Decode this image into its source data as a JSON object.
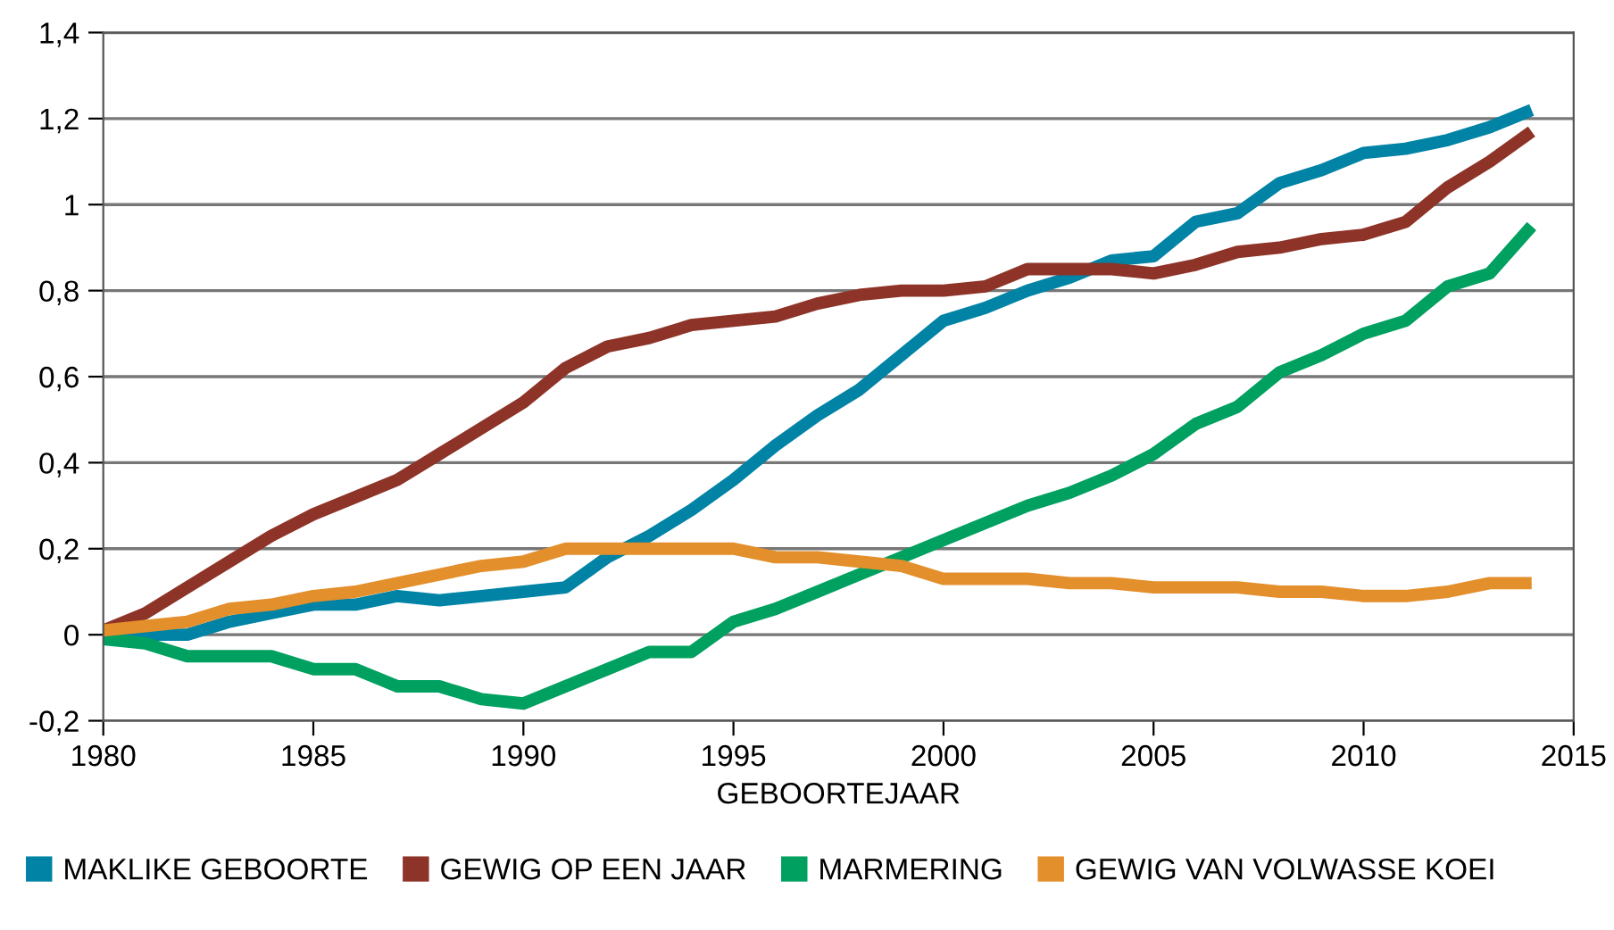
{
  "chart_data": {
    "type": "line",
    "xlabel": "GEBOORTEJAAR",
    "x": [
      1980,
      1981,
      1982,
      1983,
      1984,
      1985,
      1986,
      1987,
      1988,
      1989,
      1990,
      1991,
      1992,
      1993,
      1994,
      1995,
      1996,
      1997,
      1998,
      1999,
      2000,
      2001,
      2002,
      2003,
      2004,
      2005,
      2006,
      2007,
      2008,
      2009,
      2010,
      2011,
      2012,
      2013,
      2014
    ],
    "series": [
      {
        "name": "MAKLIKE GEBOORTE",
        "color": "#0083a5",
        "values": [
          0.01,
          0,
          0,
          0.03,
          0.05,
          0.07,
          0.07,
          0.09,
          0.08,
          0.09,
          0.1,
          0.11,
          0.18,
          0.23,
          0.29,
          0.36,
          0.44,
          0.51,
          0.57,
          0.65,
          0.73,
          0.76,
          0.8,
          0.83,
          0.87,
          0.88,
          0.96,
          0.98,
          1.05,
          1.08,
          1.12,
          1.13,
          1.15,
          1.18,
          1.22
        ]
      },
      {
        "name": "GEWIG OP EEN JAAR",
        "color": "#8e3328",
        "values": [
          0.01,
          0.05,
          0.11,
          0.17,
          0.23,
          0.28,
          0.32,
          0.36,
          0.42,
          0.48,
          0.54,
          0.62,
          0.67,
          0.69,
          0.72,
          0.73,
          0.74,
          0.77,
          0.79,
          0.8,
          0.8,
          0.81,
          0.85,
          0.85,
          0.85,
          0.84,
          0.86,
          0.89,
          0.9,
          0.92,
          0.93,
          0.96,
          1.04,
          1.1,
          1.17
        ]
      },
      {
        "name": "MARMERING",
        "color": "#00a060",
        "values": [
          -0.01,
          -0.02,
          -0.05,
          -0.05,
          -0.05,
          -0.08,
          -0.08,
          -0.12,
          -0.12,
          -0.15,
          -0.16,
          -0.12,
          -0.08,
          -0.04,
          -0.04,
          0.03,
          0.06,
          0.1,
          0.14,
          0.18,
          0.22,
          0.26,
          0.3,
          0.33,
          0.37,
          0.42,
          0.49,
          0.53,
          0.61,
          0.65,
          0.7,
          0.73,
          0.81,
          0.84,
          0.95
        ]
      },
      {
        "name": "GEWIG VAN VOLWASSE KOEI",
        "color": "#e38f2b",
        "values": [
          0.01,
          0.02,
          0.03,
          0.06,
          0.07,
          0.09,
          0.1,
          0.12,
          0.14,
          0.16,
          0.17,
          0.2,
          0.2,
          0.2,
          0.2,
          0.2,
          0.18,
          0.18,
          0.17,
          0.16,
          0.13,
          0.13,
          0.13,
          0.12,
          0.12,
          0.11,
          0.11,
          0.11,
          0.1,
          0.1,
          0.09,
          0.09,
          0.1,
          0.12,
          0.12
        ]
      }
    ],
    "xlim": [
      1980,
      2015
    ],
    "xticks": [
      1980,
      1985,
      1990,
      1995,
      2000,
      2005,
      2010,
      2015
    ],
    "ylim": [
      -0.2,
      1.4
    ],
    "yticks": [
      {
        "value": -0.2,
        "label": "-0,2"
      },
      0,
      {
        "value": 0.2,
        "label": "0,2"
      },
      {
        "value": 0.4,
        "label": "0,4"
      },
      {
        "value": 0.6,
        "label": "0,6"
      },
      {
        "value": 0.8,
        "label": "0,8"
      },
      1,
      {
        "value": 1.2,
        "label": "1,2"
      },
      {
        "value": 1.4,
        "label": "1,4"
      }
    ],
    "grid": "y",
    "legend": "bottom",
    "marker": "none",
    "line_style": "solid"
  }
}
